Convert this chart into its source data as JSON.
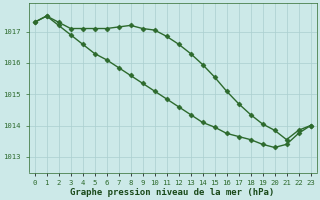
{
  "line1_x": [
    0,
    1,
    2,
    3,
    4,
    5,
    6,
    7,
    8,
    9,
    10,
    11,
    12,
    13,
    14,
    15,
    16,
    17,
    18,
    19,
    20,
    21,
    22,
    23
  ],
  "line1_y": [
    1017.3,
    1017.5,
    1017.3,
    1017.1,
    1017.1,
    1017.1,
    1017.1,
    1017.15,
    1017.2,
    1017.1,
    1017.05,
    1016.85,
    1016.6,
    1016.3,
    1015.95,
    1015.55,
    1015.1,
    1014.7,
    1014.35,
    1014.05,
    1013.85,
    1013.55,
    1013.85,
    1014.0
  ],
  "line2_x": [
    0,
    1,
    2,
    3,
    4,
    5,
    6,
    7,
    8,
    9,
    10,
    11,
    12,
    13,
    14,
    15,
    16,
    17,
    18,
    19,
    20,
    21,
    22,
    23
  ],
  "line2_y": [
    1017.3,
    1017.5,
    1017.2,
    1016.9,
    1016.6,
    1016.3,
    1016.1,
    1015.85,
    1015.6,
    1015.35,
    1015.1,
    1014.85,
    1014.6,
    1014.35,
    1014.1,
    1013.95,
    1013.75,
    1013.65,
    1013.55,
    1013.4,
    1013.3,
    1013.4,
    1013.75,
    1014.0
  ],
  "line_color": "#2d6a2d",
  "marker": "D",
  "markersize": 2.5,
  "linewidth": 1.0,
  "xlabel": "Graphe pression niveau de la mer (hPa)",
  "xlabel_fontsize": 6.5,
  "xlabel_color": "#1a4a1a",
  "ylabel_ticks": [
    1013,
    1014,
    1015,
    1016,
    1017
  ],
  "xtick_labels": [
    "0",
    "1",
    "2",
    "3",
    "4",
    "5",
    "6",
    "7",
    "8",
    "9",
    "10",
    "11",
    "12",
    "13",
    "14",
    "15",
    "16",
    "17",
    "18",
    "19",
    "20",
    "21",
    "22",
    "23"
  ],
  "xlim": [
    -0.5,
    23.5
  ],
  "ylim": [
    1012.5,
    1017.9
  ],
  "bg_color": "#cce9e8",
  "grid_color": "#aacfcf",
  "tick_color": "#2d6a2d",
  "tick_fontsize": 5.2,
  "font_family": "monospace"
}
